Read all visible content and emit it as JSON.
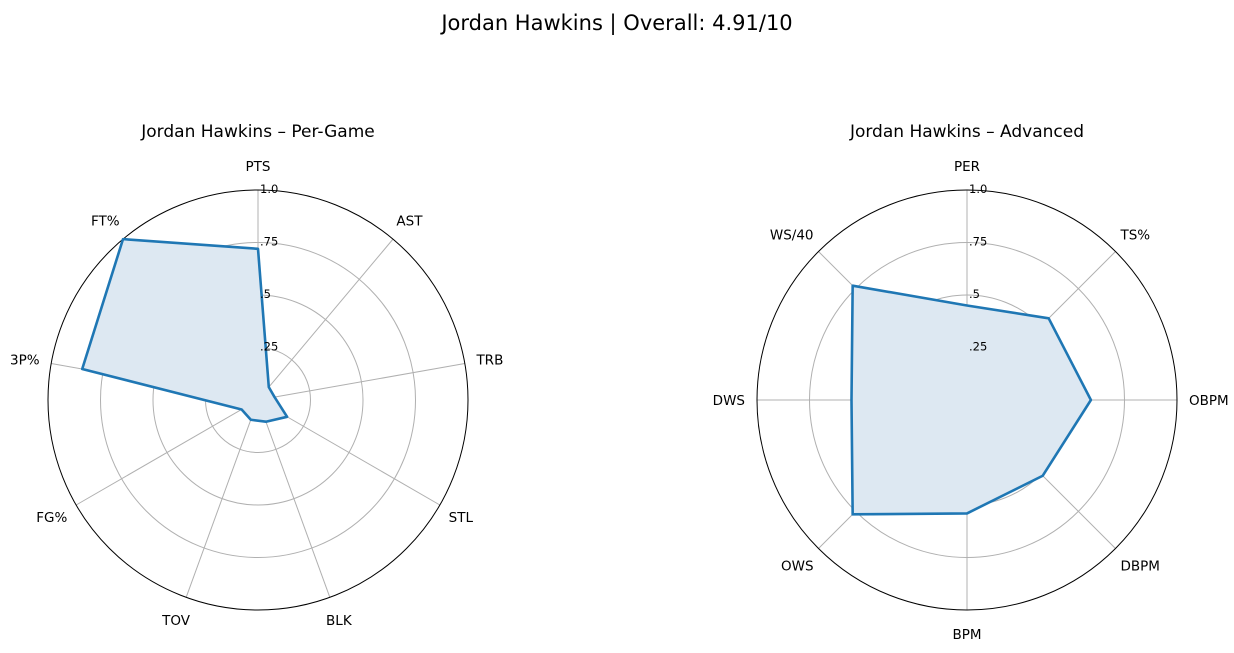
{
  "figure": {
    "suptitle": "Jordan Hawkins | Overall: 4.91/10"
  },
  "style": {
    "line_color": "#1f77b4",
    "fill_color": "#dde8f2",
    "grid_color": "#b0b0b0",
    "spine_color": "#000000"
  },
  "chart_data": [
    {
      "type": "radar",
      "title": "Jordan Hawkins – Per-Game",
      "categories": [
        "PTS",
        "AST",
        "TRB",
        "STL",
        "BLK",
        "TOV",
        "FG%",
        "3P%",
        "FT%"
      ],
      "values": [
        0.72,
        0.08,
        0.08,
        0.16,
        0.11,
        0.1,
        0.09,
        0.85,
        1.0
      ],
      "rlim": [
        0,
        1
      ],
      "rticks": [
        0.25,
        0.5,
        0.75,
        1.0
      ],
      "rtick_labels": [
        ".25",
        ".5",
        ".75",
        "1.0"
      ],
      "grid": true
    },
    {
      "type": "radar",
      "title": "Jordan Hawkins – Advanced",
      "categories": [
        "PER",
        "TS%",
        "OBPM",
        "DBPM",
        "BPM",
        "OWS",
        "DWS",
        "WS/40"
      ],
      "values": [
        0.45,
        0.55,
        0.59,
        0.51,
        0.54,
        0.77,
        0.55,
        0.77
      ],
      "rlim": [
        0,
        1
      ],
      "rticks": [
        0.25,
        0.5,
        0.75,
        1.0
      ],
      "rtick_labels": [
        ".25",
        ".5",
        ".75",
        "1.0"
      ],
      "grid": true
    }
  ]
}
